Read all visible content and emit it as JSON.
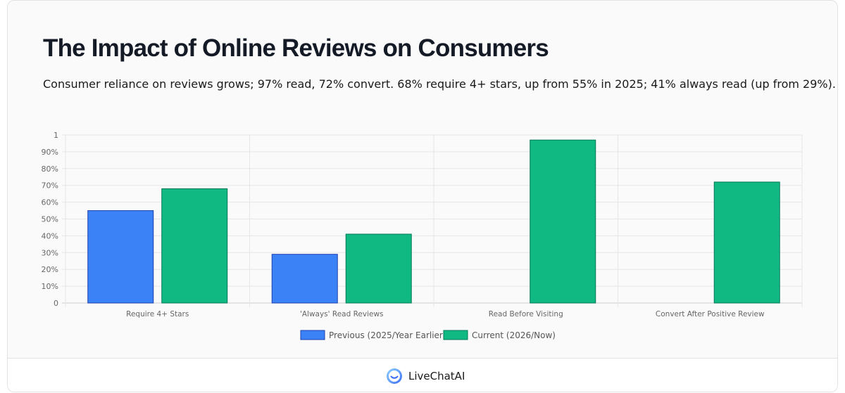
{
  "header": {
    "title": "The Impact of Online Reviews on Consumers",
    "subtitle": "Consumer reliance on reviews grows; 97% read, 72% convert. 68% require 4+ stars, up from 55% in 2025; 41% always read (up from 29%)."
  },
  "chart_data": {
    "type": "bar",
    "categories": [
      "Require 4+ Stars",
      "'Always' Read Reviews",
      "Read Before Visiting",
      "Convert After Positive Review"
    ],
    "series": [
      {
        "name": "Previous (2025/Year Earlier)",
        "values": [
          0.55,
          0.29,
          null,
          null
        ],
        "color": "#3b82f6",
        "border": "#1e40af"
      },
      {
        "name": "Current (2026/Now)",
        "values": [
          0.68,
          0.41,
          0.97,
          0.72
        ],
        "color": "#10b981",
        "border": "#047857"
      }
    ],
    "y_ticks": [
      {
        "value": 0,
        "label": "0"
      },
      {
        "value": 0.1,
        "label": "10%"
      },
      {
        "value": 0.2,
        "label": "20%"
      },
      {
        "value": 0.3,
        "label": "30%"
      },
      {
        "value": 0.4,
        "label": "40%"
      },
      {
        "value": 0.5,
        "label": "50%"
      },
      {
        "value": 0.6,
        "label": "60%"
      },
      {
        "value": 0.7,
        "label": "70%"
      },
      {
        "value": 0.8,
        "label": "80%"
      },
      {
        "value": 0.9,
        "label": "90%"
      },
      {
        "value": 1,
        "label": "1"
      }
    ],
    "ylim": [
      0,
      1
    ],
    "grid": true,
    "legend_position": "bottom-center"
  },
  "footer": {
    "brand_name": "LiveChatAI",
    "logo_icon": "livechatai-logo-icon"
  }
}
